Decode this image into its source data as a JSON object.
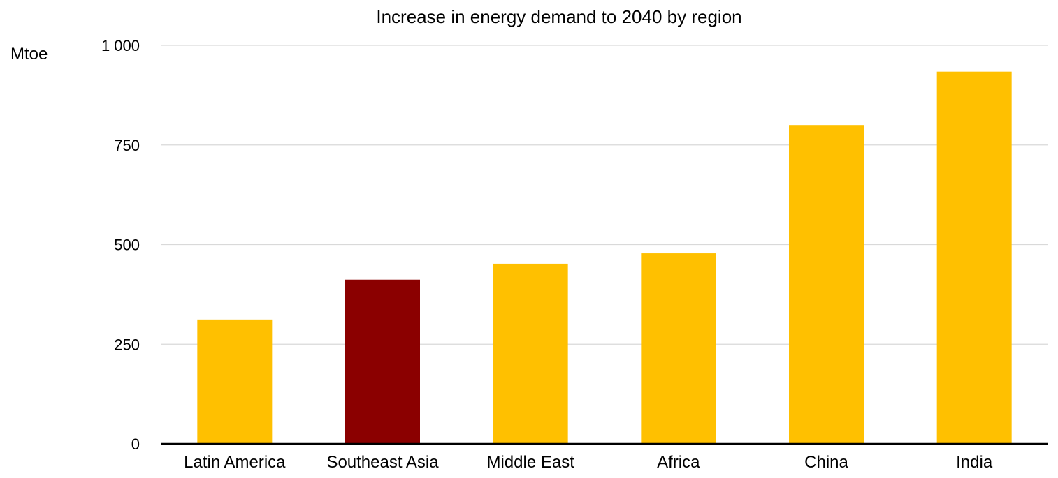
{
  "chart_data": {
    "type": "bar",
    "title": "Increase in energy demand to 2040 by region",
    "ylabel": "Mtoe",
    "xlabel": "",
    "categories": [
      "Latin America",
      "Southeast Asia",
      "Middle East",
      "Africa",
      "China",
      "India"
    ],
    "values": [
      312,
      412,
      452,
      478,
      800,
      934
    ],
    "ylim": [
      0,
      1000
    ],
    "yticks": [
      0,
      250,
      500,
      750,
      1000
    ],
    "ytick_labels": [
      "0",
      "250",
      "500",
      "750",
      "1 000"
    ],
    "grid": true,
    "legend": "none",
    "colors": {
      "default_bar": "#FFC000",
      "highlight_bar": "#8B0000",
      "highlight_category": "Southeast Asia",
      "grid": "#d9d9d9",
      "axis": "#000000"
    }
  }
}
